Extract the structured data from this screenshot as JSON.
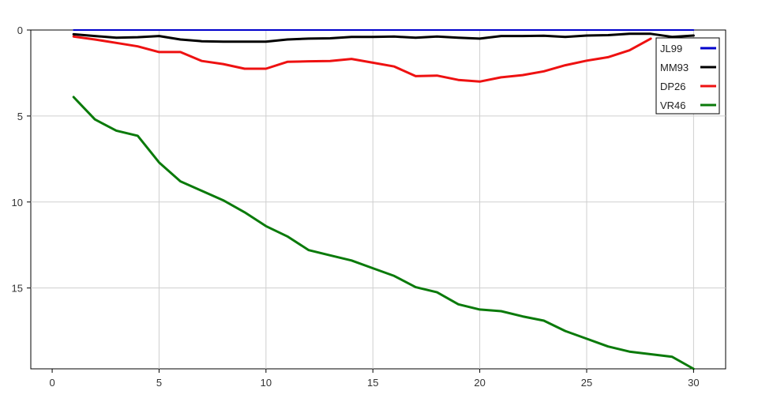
{
  "chart_data": {
    "type": "line",
    "title": "",
    "xlabel": "",
    "ylabel": "",
    "xlim": [
      -1,
      31.5
    ],
    "ylim": [
      19.7,
      0
    ],
    "y_inverted": true,
    "grid": true,
    "legend_placement": "top-right",
    "x_ticks": [
      0,
      5,
      10,
      15,
      20,
      25,
      30
    ],
    "y_ticks": [
      0,
      5,
      10,
      15
    ],
    "series": [
      {
        "name": "JL99",
        "color": "#0000cc",
        "x": [
          1,
          30
        ],
        "y": [
          0,
          0
        ]
      },
      {
        "name": "MM93",
        "color": "#000000",
        "x": [
          1,
          2,
          3,
          4,
          5,
          6,
          7,
          8,
          9,
          10,
          11,
          12,
          13,
          14,
          15,
          16,
          17,
          18,
          19,
          20,
          21,
          22,
          23,
          24,
          25,
          26,
          27,
          28,
          29,
          30
        ],
        "y": [
          0.25,
          0.35,
          0.45,
          0.42,
          0.35,
          0.55,
          0.65,
          0.68,
          0.68,
          0.68,
          0.55,
          0.5,
          0.48,
          0.4,
          0.4,
          0.38,
          0.45,
          0.38,
          0.45,
          0.5,
          0.35,
          0.35,
          0.33,
          0.4,
          0.32,
          0.3,
          0.22,
          0.22,
          0.4,
          0.32
        ]
      },
      {
        "name": "DP26",
        "color": "#ee1111",
        "x": [
          1,
          2,
          3,
          4,
          5,
          6,
          7,
          8,
          9,
          10,
          11,
          12,
          13,
          14,
          15,
          16,
          17,
          18,
          19,
          20,
          21,
          22,
          23,
          24,
          25,
          26,
          27,
          28
        ],
        "y": [
          0.38,
          0.55,
          0.75,
          0.95,
          1.28,
          1.28,
          1.8,
          1.98,
          2.25,
          2.25,
          1.85,
          1.82,
          1.8,
          1.68,
          1.9,
          2.12,
          2.68,
          2.65,
          2.9,
          3.0,
          2.75,
          2.62,
          2.4,
          2.05,
          1.78,
          1.58,
          1.18,
          0.5
        ]
      },
      {
        "name": "VR46",
        "color": "#0a7a0a",
        "x": [
          1,
          2,
          3,
          4,
          5,
          6,
          7,
          8,
          9,
          10,
          11,
          12,
          13,
          14,
          15,
          16,
          17,
          18,
          19,
          20,
          21,
          22,
          23,
          24,
          25,
          26,
          27,
          28,
          29,
          30
        ],
        "y": [
          3.9,
          5.2,
          5.85,
          6.15,
          7.7,
          8.8,
          9.35,
          9.9,
          10.6,
          11.4,
          12.0,
          12.8,
          13.1,
          13.4,
          13.85,
          14.3,
          14.95,
          15.25,
          15.95,
          16.25,
          16.35,
          16.65,
          16.9,
          17.5,
          17.95,
          18.4,
          18.7,
          18.85,
          19.0,
          19.7
        ]
      }
    ]
  }
}
